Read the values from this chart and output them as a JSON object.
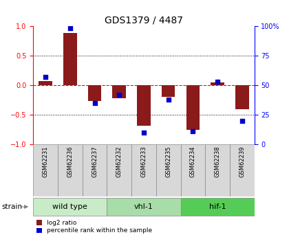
{
  "title": "GDS1379 / 4487",
  "samples": [
    "GSM62231",
    "GSM62236",
    "GSM62237",
    "GSM62232",
    "GSM62233",
    "GSM62235",
    "GSM62234",
    "GSM62238",
    "GSM62239"
  ],
  "log2_ratio": [
    0.07,
    0.88,
    -0.27,
    -0.22,
    -0.68,
    -0.2,
    -0.75,
    0.05,
    -0.4
  ],
  "percentile_rank": [
    57,
    98,
    35,
    42,
    10,
    38,
    11,
    53,
    20
  ],
  "groups": [
    {
      "label": "wild type",
      "start": 0,
      "end": 3,
      "color": "#c8ebc8"
    },
    {
      "label": "vhl-1",
      "start": 3,
      "end": 6,
      "color": "#a8dca8"
    },
    {
      "label": "hif-1",
      "start": 6,
      "end": 9,
      "color": "#55cc55"
    }
  ],
  "bar_color": "#8b1a1a",
  "dot_color": "#0000cc",
  "ylim_left": [
    -1,
    1
  ],
  "ylim_right": [
    0,
    100
  ],
  "yticks_left": [
    -1,
    -0.5,
    0,
    0.5,
    1
  ],
  "yticks_right": [
    0,
    25,
    50,
    75,
    100
  ],
  "dotted_lines": [
    -0.5,
    0.5
  ],
  "bar_width": 0.55,
  "sample_box_color": "#d8d8d8",
  "sample_box_edge": "#888888"
}
